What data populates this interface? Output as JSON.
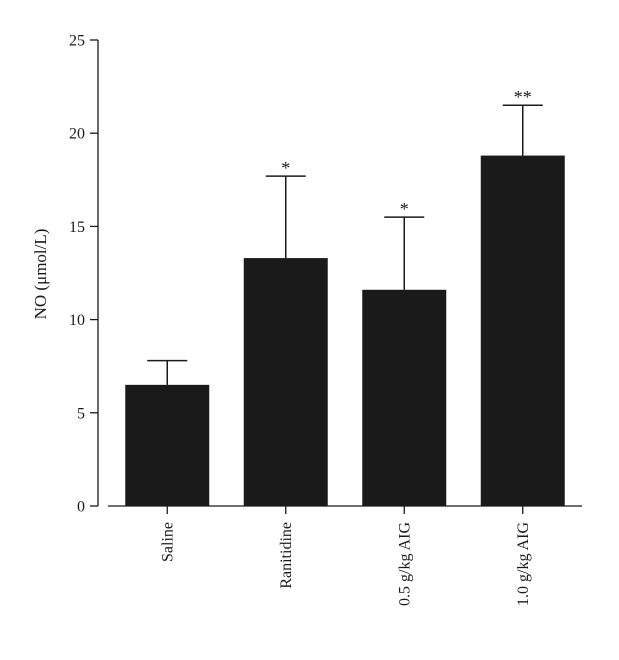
{
  "chart_data": {
    "type": "bar",
    "ylabel": "NO (μmol/L)",
    "ylim": [
      0,
      25
    ],
    "yticks": [
      0,
      5,
      10,
      15,
      20,
      25
    ],
    "categories": [
      "Saline",
      "Ranitidine",
      "0.5 g/kg AIG",
      "1.0 g/kg AIG"
    ],
    "values": [
      6.5,
      13.3,
      11.6,
      18.8
    ],
    "errors": [
      1.3,
      4.4,
      3.9,
      2.7
    ],
    "significance": [
      "",
      "*",
      "*",
      "**"
    ],
    "bar_color": "#1a1a1a"
  }
}
